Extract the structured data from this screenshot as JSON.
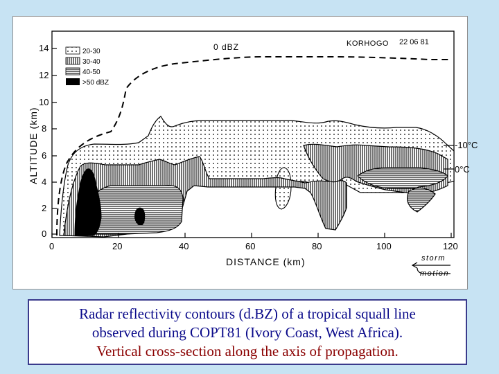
{
  "diagram": {
    "header_left": "0 dBZ",
    "station": "KORHOGO",
    "date": "22 06 81",
    "legend": [
      {
        "label": "20-30",
        "pattern": "dots"
      },
      {
        "label": "30-40",
        "pattern": "vertical-lines"
      },
      {
        "label": "40-50",
        "pattern": "horizontal-lines"
      },
      {
        "label": ">50 dBZ",
        "pattern": "solid"
      }
    ],
    "y_axis_label": "ALTITUDE (km)",
    "x_axis_label": "DISTANCE (km)",
    "y_ticks": [
      "0",
      "2",
      "4",
      "6",
      "8",
      "10",
      "12",
      "14"
    ],
    "x_ticks": [
      "0",
      "20",
      "40",
      "60",
      "80",
      "100",
      "120"
    ],
    "isotherm_minus10": "-10°C",
    "isotherm_zero": "0°C",
    "storm_label_1": "storm",
    "storm_label_2": "motion",
    "colors": {
      "background": "#c7e3f3",
      "caption_border": "#3a3a8c",
      "caption_blue": "#0a0a8a",
      "caption_red": "#8a0000"
    }
  },
  "caption": {
    "line1": "Radar reflectivity contours (d.BZ) of a tropical squall line",
    "line2": "observed during COPT81 (Ivory Coast, West Africa).",
    "line3": "Vertical cross-section along the axis of propagation."
  }
}
